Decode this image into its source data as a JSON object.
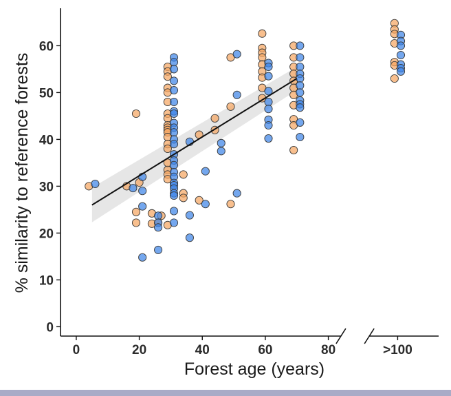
{
  "chart_data": {
    "type": "scatter",
    "xlabel": "Forest age (years)",
    "ylabel": "% similarity to reference forests",
    "xlim": [
      -5,
      115
    ],
    "ylim": [
      -2,
      68
    ],
    "x_ticks": [
      {
        "value": 0,
        "label": "0"
      },
      {
        "value": 20,
        "label": "20"
      },
      {
        "value": 40,
        "label": "40"
      },
      {
        "value": 60,
        "label": "60"
      },
      {
        "value": 80,
        "label": "80"
      },
      {
        "value": 102,
        "label": ">100"
      }
    ],
    "y_ticks": [
      0,
      10,
      20,
      30,
      40,
      50,
      60
    ],
    "axis_break": {
      "after": 84,
      "before": 93
    },
    "grid": false,
    "legend": "none",
    "colors": {
      "orange": "#f5a663",
      "blue": "#3f85e8",
      "trend": "#111111",
      "band": "#c8c8c8"
    },
    "trend_line": {
      "x": [
        5,
        70
      ],
      "y": [
        26.0,
        53.0
      ],
      "ci_lower": [
        22.3,
        50.5
      ],
      "ci_upper": [
        29.7,
        55.5
      ]
    },
    "series": [
      {
        "color": "orange",
        "points": [
          [
            4,
            30
          ],
          [
            16,
            30
          ],
          [
            19,
            45.5
          ],
          [
            19,
            24.5
          ],
          [
            19,
            22.2
          ],
          [
            20,
            30.8
          ],
          [
            24,
            24.2
          ],
          [
            24,
            22.0
          ],
          [
            26,
            22.2
          ],
          [
            27,
            23.7
          ],
          [
            29,
            21.7
          ],
          [
            29,
            55.5
          ],
          [
            29,
            54.5
          ],
          [
            29,
            53.4
          ],
          [
            29,
            51
          ],
          [
            29,
            50
          ],
          [
            29,
            48
          ],
          [
            29,
            45.5
          ],
          [
            29,
            44.5
          ],
          [
            29,
            43
          ],
          [
            29,
            42.5
          ],
          [
            29,
            42
          ],
          [
            29,
            41.5
          ],
          [
            29,
            40.5
          ],
          [
            29,
            39
          ],
          [
            29,
            38
          ],
          [
            29,
            33.5
          ],
          [
            29,
            32.5
          ],
          [
            29,
            31.5
          ],
          [
            29,
            35
          ],
          [
            34,
            32.5
          ],
          [
            34,
            28.5
          ],
          [
            34,
            27.5
          ],
          [
            39,
            41
          ],
          [
            39,
            27
          ],
          [
            44,
            44.5
          ],
          [
            44,
            42
          ],
          [
            49,
            57.5
          ],
          [
            49,
            47
          ],
          [
            49,
            26.2
          ],
          [
            59,
            62.6
          ],
          [
            59,
            59.5
          ],
          [
            59,
            58.5
          ],
          [
            59,
            57.5
          ],
          [
            59,
            56
          ],
          [
            59,
            54.5
          ],
          [
            59,
            53.2
          ],
          [
            59,
            51
          ],
          [
            59,
            48.8
          ],
          [
            69,
            60
          ],
          [
            69,
            57.5
          ],
          [
            69,
            55.5
          ],
          [
            69,
            54
          ],
          [
            69,
            52.5
          ],
          [
            69,
            51
          ],
          [
            69,
            49.5
          ],
          [
            69,
            47.3
          ],
          [
            69,
            44.3
          ],
          [
            69,
            43
          ],
          [
            69,
            37.7
          ],
          [
            101,
            64.8
          ],
          [
            101,
            63.5
          ],
          [
            101,
            62.5
          ],
          [
            101,
            60.5
          ],
          [
            101,
            56.5
          ],
          [
            101,
            55.8
          ],
          [
            101,
            53
          ]
        ]
      },
      {
        "color": "blue",
        "points": [
          [
            6,
            30.5
          ],
          [
            18,
            29.6
          ],
          [
            21,
            32
          ],
          [
            21,
            29
          ],
          [
            21,
            25.7
          ],
          [
            21,
            14.8
          ],
          [
            26,
            23.7
          ],
          [
            26,
            22.2
          ],
          [
            26,
            21.2
          ],
          [
            26,
            16.4
          ],
          [
            31,
            57.5
          ],
          [
            31,
            56.5
          ],
          [
            31,
            55
          ],
          [
            31,
            52.5
          ],
          [
            31,
            50.5
          ],
          [
            31,
            48
          ],
          [
            31,
            46
          ],
          [
            31,
            45.5
          ],
          [
            31,
            43.5
          ],
          [
            31,
            42.5
          ],
          [
            31,
            41.5
          ],
          [
            31,
            40
          ],
          [
            31,
            39
          ],
          [
            31,
            36.8
          ],
          [
            31,
            35.5
          ],
          [
            31,
            34.5
          ],
          [
            31,
            33
          ],
          [
            31,
            32
          ],
          [
            31,
            30.7
          ],
          [
            31,
            30.2
          ],
          [
            31,
            29.5
          ],
          [
            31,
            28.5
          ],
          [
            31,
            28
          ],
          [
            31,
            24.7
          ],
          [
            31,
            22.2
          ],
          [
            36,
            39.5
          ],
          [
            36,
            23.8
          ],
          [
            36,
            19
          ],
          [
            41,
            33.2
          ],
          [
            41,
            26.2
          ],
          [
            46,
            39.2
          ],
          [
            46,
            37.5
          ],
          [
            51,
            58.2
          ],
          [
            51,
            49.5
          ],
          [
            51,
            28.5
          ],
          [
            61,
            56.3
          ],
          [
            61,
            55.5
          ],
          [
            61,
            53.5
          ],
          [
            61,
            50.3
          ],
          [
            61,
            48
          ],
          [
            61,
            46.5
          ],
          [
            61,
            44.2
          ],
          [
            61,
            43
          ],
          [
            61,
            40.2
          ],
          [
            71,
            60
          ],
          [
            71,
            57.5
          ],
          [
            71,
            55.5
          ],
          [
            71,
            54
          ],
          [
            71,
            53
          ],
          [
            71,
            51.5
          ],
          [
            71,
            50
          ],
          [
            71,
            48.3
          ],
          [
            71,
            47.5
          ],
          [
            71,
            46.8
          ],
          [
            71,
            43.6
          ],
          [
            71,
            40.5
          ],
          [
            103,
            62.3
          ],
          [
            103,
            61
          ],
          [
            103,
            60
          ],
          [
            103,
            58
          ],
          [
            103,
            56
          ],
          [
            103,
            55.2
          ],
          [
            103,
            54.5
          ]
        ]
      }
    ]
  }
}
